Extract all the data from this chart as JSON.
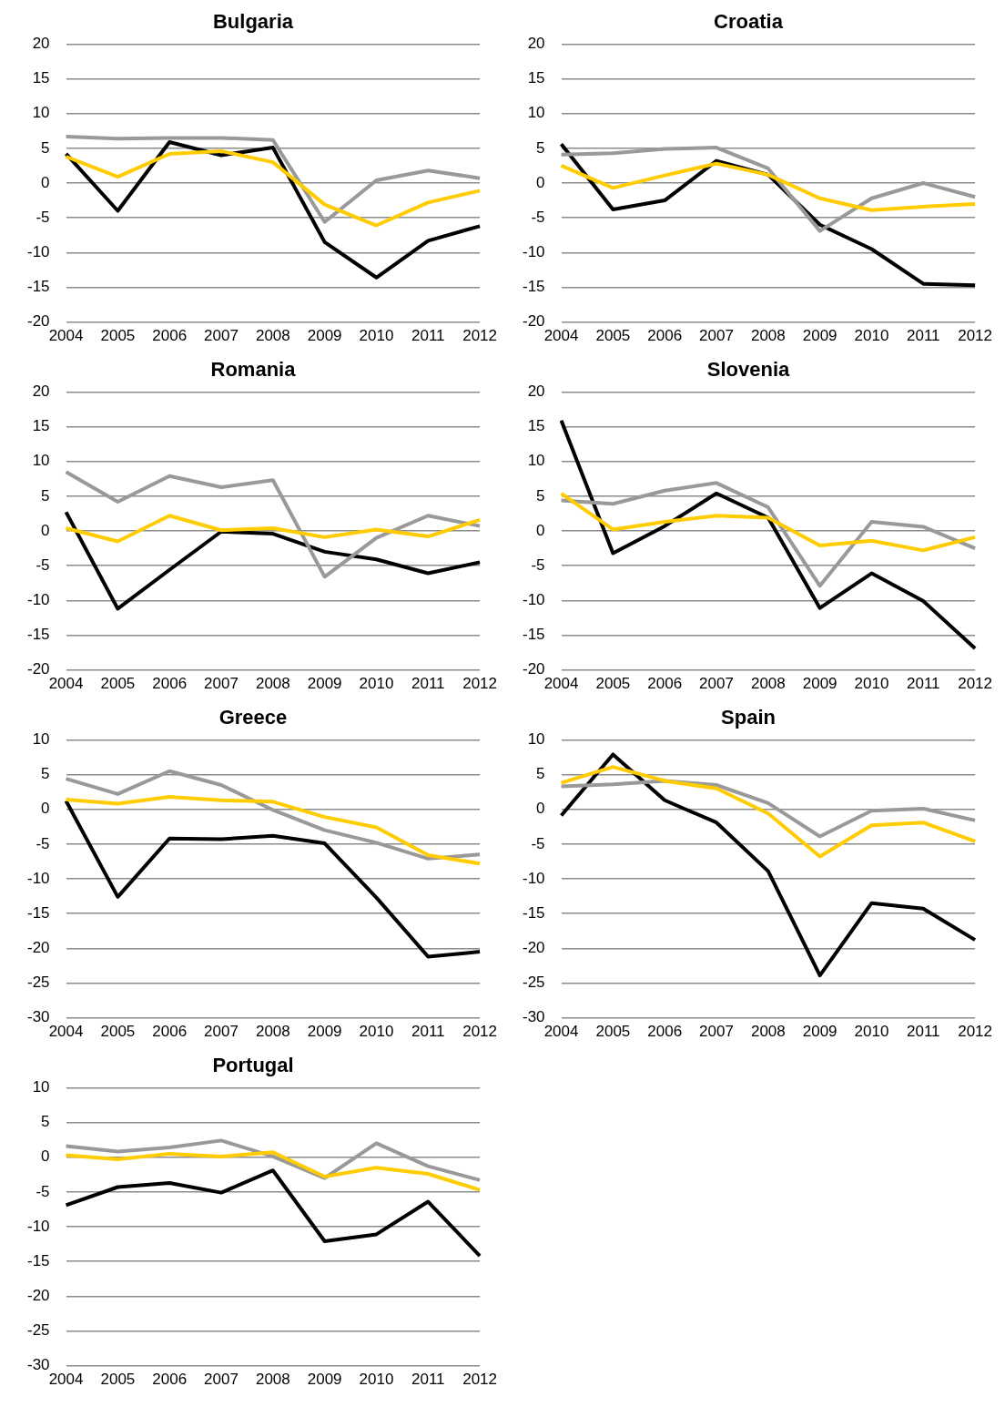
{
  "chart_data": [
    {
      "type": "line",
      "title": "Bulgaria",
      "categories": [
        "2004",
        "2005",
        "2006",
        "2007",
        "2008",
        "2009",
        "2010",
        "2011",
        "2012"
      ],
      "ylim": [
        -20,
        20
      ],
      "yticks": [
        -20,
        -15,
        -10,
        -5,
        0,
        5,
        10,
        15,
        20
      ],
      "grid": "y",
      "legend": false,
      "marker": "none",
      "series": [
        {
          "color": "#000000",
          "values": [
            4.2,
            -4.0,
            5.9,
            4.0,
            5.1,
            -8.5,
            -13.6,
            -8.3,
            -6.2
          ]
        },
        {
          "color": "#999999",
          "values": [
            6.7,
            6.4,
            6.5,
            6.5,
            6.2,
            -5.6,
            0.4,
            1.8,
            0.7
          ]
        },
        {
          "color": "#ffcc00",
          "values": [
            3.8,
            0.9,
            4.2,
            4.6,
            3.0,
            -3.1,
            -6.1,
            -2.8,
            -1.1
          ]
        }
      ]
    },
    {
      "type": "line",
      "title": "Croatia",
      "categories": [
        "2004",
        "2005",
        "2006",
        "2007",
        "2008",
        "2009",
        "2010",
        "2011",
        "2012"
      ],
      "ylim": [
        -20,
        20
      ],
      "yticks": [
        -20,
        -15,
        -10,
        -5,
        0,
        5,
        10,
        15,
        20
      ],
      "grid": "y",
      "legend": false,
      "marker": "none",
      "series": [
        {
          "color": "#000000",
          "values": [
            5.6,
            -3.8,
            -2.5,
            3.2,
            1.2,
            -6.0,
            -9.5,
            -14.5,
            -14.7
          ]
        },
        {
          "color": "#999999",
          "values": [
            4.1,
            4.3,
            4.9,
            5.1,
            2.1,
            -6.9,
            -2.2,
            0.0,
            -2.0
          ]
        },
        {
          "color": "#ffcc00",
          "values": [
            2.5,
            -0.7,
            1.1,
            2.8,
            1.2,
            -2.2,
            -3.9,
            -3.4,
            -3.0
          ]
        }
      ]
    },
    {
      "type": "line",
      "title": "Romania",
      "categories": [
        "2004",
        "2005",
        "2006",
        "2007",
        "2008",
        "2009",
        "2010",
        "2011",
        "2012"
      ],
      "ylim": [
        -20,
        20
      ],
      "yticks": [
        -20,
        -15,
        -10,
        -5,
        0,
        5,
        10,
        15,
        20
      ],
      "grid": "y",
      "legend": false,
      "marker": "none",
      "series": [
        {
          "color": "#000000",
          "values": [
            2.7,
            -11.2,
            -5.6,
            -0.1,
            -0.4,
            -3.0,
            -4.1,
            -6.1,
            -4.5
          ]
        },
        {
          "color": "#999999",
          "values": [
            8.5,
            4.2,
            7.9,
            6.3,
            7.3,
            -6.6,
            -1.0,
            2.2,
            0.7
          ]
        },
        {
          "color": "#ffcc00",
          "values": [
            0.4,
            -1.5,
            2.2,
            0.1,
            0.4,
            -0.9,
            0.2,
            -0.8,
            1.6
          ]
        }
      ]
    },
    {
      "type": "line",
      "title": "Slovenia",
      "categories": [
        "2004",
        "2005",
        "2006",
        "2007",
        "2008",
        "2009",
        "2010",
        "2011",
        "2012"
      ],
      "ylim": [
        -20,
        20
      ],
      "yticks": [
        -20,
        -15,
        -10,
        -5,
        0,
        5,
        10,
        15,
        20
      ],
      "grid": "y",
      "legend": false,
      "marker": "none",
      "series": [
        {
          "color": "#000000",
          "values": [
            15.9,
            -3.2,
            0.7,
            5.4,
            1.9,
            -11.1,
            -6.1,
            -10.1,
            -16.9
          ]
        },
        {
          "color": "#999999",
          "values": [
            4.4,
            3.9,
            5.8,
            6.9,
            3.4,
            -7.9,
            1.3,
            0.6,
            -2.5
          ]
        },
        {
          "color": "#ffcc00",
          "values": [
            5.4,
            0.2,
            1.3,
            2.2,
            1.9,
            -2.1,
            -1.4,
            -2.8,
            -0.9
          ]
        }
      ]
    },
    {
      "type": "line",
      "title": "Greece",
      "categories": [
        "2004",
        "2005",
        "2006",
        "2007",
        "2008",
        "2009",
        "2010",
        "2011",
        "2012"
      ],
      "ylim": [
        -30,
        10
      ],
      "yticks": [
        -30,
        -25,
        -20,
        -15,
        -10,
        -5,
        0,
        5,
        10
      ],
      "grid": "y",
      "legend": false,
      "marker": "none",
      "series": [
        {
          "color": "#000000",
          "values": [
            1.2,
            -12.6,
            -4.2,
            -4.3,
            -3.8,
            -4.9,
            -12.7,
            -21.2,
            -20.5
          ]
        },
        {
          "color": "#999999",
          "values": [
            4.4,
            2.2,
            5.5,
            3.5,
            -0.1,
            -3.0,
            -4.8,
            -7.1,
            -6.5
          ]
        },
        {
          "color": "#ffcc00",
          "values": [
            1.4,
            0.8,
            1.8,
            1.3,
            1.1,
            -1.1,
            -2.6,
            -6.6,
            -7.8
          ]
        }
      ]
    },
    {
      "type": "line",
      "title": "Spain",
      "categories": [
        "2004",
        "2005",
        "2006",
        "2007",
        "2008",
        "2009",
        "2010",
        "2011",
        "2012"
      ],
      "ylim": [
        -30,
        10
      ],
      "yticks": [
        -30,
        -25,
        -20,
        -15,
        -10,
        -5,
        0,
        5,
        10
      ],
      "grid": "y",
      "legend": false,
      "marker": "none",
      "series": [
        {
          "color": "#000000",
          "values": [
            -0.9,
            7.9,
            1.3,
            -1.9,
            -8.9,
            -23.9,
            -13.5,
            -14.3,
            -18.8
          ]
        },
        {
          "color": "#999999",
          "values": [
            3.3,
            3.6,
            4.1,
            3.5,
            0.9,
            -3.9,
            -0.2,
            0.1,
            -1.6
          ]
        },
        {
          "color": "#ffcc00",
          "values": [
            3.8,
            6.1,
            4.1,
            3.0,
            -0.6,
            -6.8,
            -2.3,
            -1.9,
            -4.6
          ]
        }
      ]
    },
    {
      "type": "line",
      "title": "Portugal",
      "categories": [
        "2004",
        "2005",
        "2006",
        "2007",
        "2008",
        "2009",
        "2010",
        "2011",
        "2012"
      ],
      "ylim": [
        -30,
        10
      ],
      "yticks": [
        -30,
        -25,
        -20,
        -15,
        -10,
        -5,
        0,
        5,
        10
      ],
      "grid": "y",
      "legend": false,
      "marker": "none",
      "series": [
        {
          "color": "#000000",
          "values": [
            -6.9,
            -4.3,
            -3.7,
            -5.1,
            -1.9,
            -12.1,
            -11.1,
            -6.4,
            -14.2
          ]
        },
        {
          "color": "#999999",
          "values": [
            1.6,
            0.8,
            1.4,
            2.4,
            0.1,
            -3.0,
            2.0,
            -1.3,
            -3.3
          ]
        },
        {
          "color": "#ffcc00",
          "values": [
            0.3,
            -0.3,
            0.5,
            0.1,
            0.7,
            -2.8,
            -1.5,
            -2.4,
            -4.7
          ]
        }
      ]
    }
  ]
}
